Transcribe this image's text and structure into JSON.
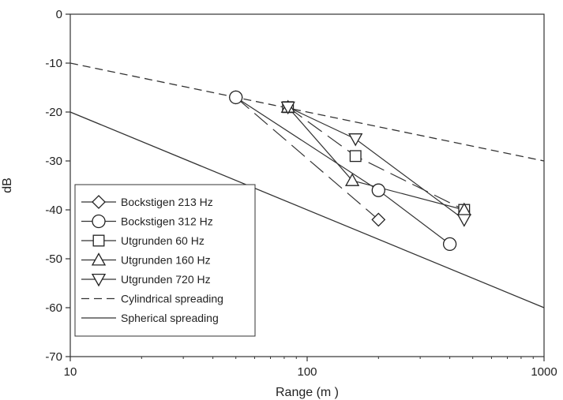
{
  "chart_data": {
    "type": "line",
    "title": "",
    "xlabel": "Range (m )",
    "ylabel": "dB",
    "x_scale": "log",
    "xlim": [
      10,
      1000
    ],
    "ylim": [
      -70,
      0
    ],
    "x_ticks": [
      "10",
      "100",
      "1000"
    ],
    "y_ticks": [
      "0",
      "-10",
      "-20",
      "-30",
      "-40",
      "-50",
      "-60",
      "-70"
    ],
    "grid": false,
    "legend_position": "bottom-left",
    "series": [
      {
        "name": "Bockstigen 213 Hz",
        "marker": "diamond",
        "line": "long-dash",
        "color": "#333333",
        "x": [
          50,
          200
        ],
        "y": [
          -17,
          -42
        ]
      },
      {
        "name": "Bockstigen 312 Hz",
        "marker": "circle",
        "line": "solid",
        "color": "#333333",
        "x": [
          50,
          200,
          400
        ],
        "y": [
          -17,
          -36,
          -47
        ]
      },
      {
        "name": "Utgrunden 60 Hz",
        "marker": "square",
        "line": "long-dash",
        "color": "#333333",
        "x": [
          83,
          160,
          460
        ],
        "y": [
          -19,
          -29,
          -40
        ]
      },
      {
        "name": "Utgrunden 160 Hz",
        "marker": "triangle-up",
        "line": "solid",
        "color": "#333333",
        "x": [
          83,
          155,
          460
        ],
        "y": [
          -19,
          -34,
          -40
        ]
      },
      {
        "name": "Utgrunden 720 Hz",
        "marker": "triangle-down",
        "line": "solid",
        "color": "#333333",
        "x": [
          83,
          160,
          460
        ],
        "y": [
          -19,
          -25.5,
          -42
        ]
      },
      {
        "name": "Cylindrical spreading",
        "marker": "none",
        "line": "short-dash",
        "color": "#333333",
        "x": [
          10,
          1000
        ],
        "y": [
          -10,
          -30
        ]
      },
      {
        "name": "Spherical spreading",
        "marker": "none",
        "line": "solid",
        "color": "#333333",
        "x": [
          10,
          1000
        ],
        "y": [
          -20,
          -60
        ]
      }
    ]
  }
}
